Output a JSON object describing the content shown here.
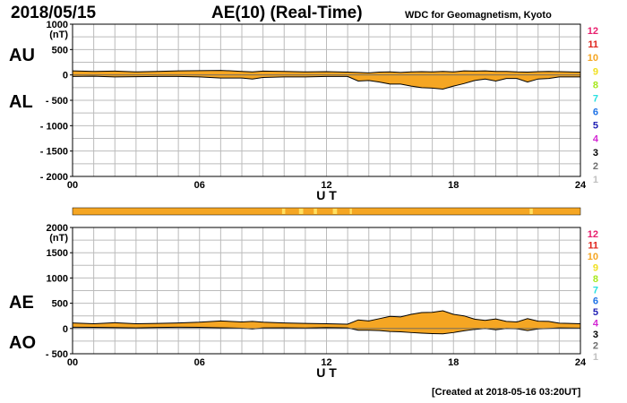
{
  "header": {
    "date": "2018/05/15",
    "title": "AE(10) (Real-Time)",
    "source": "WDC for Geomagnetism, Kyoto"
  },
  "footer": {
    "created": "[Created at 2018-05-16 03:20UT]"
  },
  "colors": {
    "fill": "#f5a623",
    "trace": "#000000",
    "grid": "#bbbbbb",
    "axis": "#000000",
    "station_bar": "#f5a623",
    "station_bar_gaps": "#ffe060"
  },
  "legend": {
    "items": [
      {
        "label": "12",
        "color": "#e8206e"
      },
      {
        "label": "11",
        "color": "#e0241c"
      },
      {
        "label": "10",
        "color": "#f5a623"
      },
      {
        "label": "9",
        "color": "#f0e020"
      },
      {
        "label": "8",
        "color": "#a6e81c"
      },
      {
        "label": "7",
        "color": "#28e0e0"
      },
      {
        "label": "6",
        "color": "#1e72e6"
      },
      {
        "label": "5",
        "color": "#2020b4"
      },
      {
        "label": "4",
        "color": "#d428d4"
      },
      {
        "label": "3",
        "color": "#000000"
      },
      {
        "label": "2",
        "color": "#707070"
      },
      {
        "label": "1",
        "color": "#c0c0c0"
      }
    ]
  },
  "chart_data": [
    {
      "type": "area",
      "id": "au-al",
      "upper_label": "AU",
      "lower_label": "AL",
      "ylabel": "(nT)",
      "xlabel": "U T",
      "x_ticks": [
        "00",
        "06",
        "12",
        "18",
        "24"
      ],
      "y_ticks": [
        {
          "value": 1000,
          "label": "1000"
        },
        {
          "value": 500,
          "label": "500"
        },
        {
          "value": 0,
          "label": "0"
        },
        {
          "value": -500,
          "label": "- 500"
        },
        {
          "value": -1000,
          "label": "- 1000"
        },
        {
          "value": -1500,
          "label": "- 1500"
        },
        {
          "value": -2000,
          "label": "- 2000"
        }
      ],
      "xlim": [
        0,
        24
      ],
      "ylim": [
        -2000,
        1000
      ],
      "grid": true,
      "x": [
        0,
        1,
        2,
        3,
        4,
        5,
        6,
        7,
        8,
        8.5,
        9,
        10,
        11,
        12,
        13,
        13.5,
        14,
        14.5,
        15,
        15.5,
        16,
        16.5,
        17,
        17.5,
        18,
        18.5,
        19,
        19.5,
        20,
        20.5,
        21,
        21.5,
        22,
        22.5,
        23,
        24
      ],
      "series": [
        {
          "name": "AU",
          "values": [
            80,
            70,
            75,
            60,
            70,
            80,
            85,
            90,
            70,
            60,
            75,
            70,
            60,
            65,
            55,
            50,
            40,
            55,
            60,
            50,
            60,
            65,
            60,
            70,
            60,
            80,
            75,
            80,
            70,
            70,
            60,
            55,
            65,
            70,
            65,
            55
          ]
        },
        {
          "name": "AL",
          "values": [
            -30,
            -25,
            -40,
            -35,
            -30,
            -30,
            -40,
            -60,
            -60,
            -80,
            -50,
            -40,
            -40,
            -30,
            -30,
            -120,
            -110,
            -140,
            -180,
            -180,
            -220,
            -250,
            -260,
            -280,
            -220,
            -170,
            -110,
            -80,
            -120,
            -70,
            -70,
            -140,
            -80,
            -70,
            -40,
            -40
          ]
        }
      ]
    },
    {
      "type": "area",
      "id": "ae-ao",
      "upper_label": "AE",
      "lower_label": "AO",
      "ylabel": "(nT)",
      "xlabel": "U T",
      "x_ticks": [
        "00",
        "06",
        "12",
        "18",
        "24"
      ],
      "y_ticks": [
        {
          "value": 2000,
          "label": "2000"
        },
        {
          "value": 1500,
          "label": "1500"
        },
        {
          "value": 1000,
          "label": "1000"
        },
        {
          "value": 500,
          "label": "500"
        },
        {
          "value": 0,
          "label": "0"
        },
        {
          "value": -500,
          "label": "- 500"
        }
      ],
      "xlim": [
        0,
        24
      ],
      "ylim": [
        -500,
        2000
      ],
      "grid": true,
      "x": [
        0,
        1,
        2,
        3,
        4,
        5,
        6,
        7,
        8,
        8.5,
        9,
        10,
        11,
        12,
        13,
        13.5,
        14,
        14.5,
        15,
        15.5,
        16,
        16.5,
        17,
        17.5,
        18,
        18.5,
        19,
        19.5,
        20,
        20.5,
        21,
        21.5,
        22,
        22.5,
        23,
        24
      ],
      "series": [
        {
          "name": "AE",
          "values": [
            110,
            95,
            115,
            95,
            100,
            110,
            125,
            150,
            130,
            140,
            125,
            110,
            100,
            95,
            85,
            170,
            150,
            195,
            240,
            230,
            280,
            315,
            320,
            350,
            280,
            250,
            185,
            160,
            190,
            140,
            130,
            195,
            145,
            140,
            105,
            95
          ]
        },
        {
          "name": "AO",
          "values": [
            25,
            22,
            18,
            12,
            20,
            25,
            22,
            15,
            5,
            -10,
            12,
            15,
            10,
            18,
            12,
            -35,
            -35,
            -42,
            -60,
            -65,
            -80,
            -92,
            -100,
            -105,
            -80,
            -45,
            -18,
            0,
            -25,
            0,
            -5,
            -42,
            -8,
            0,
            12,
            8
          ]
        }
      ]
    }
  ]
}
